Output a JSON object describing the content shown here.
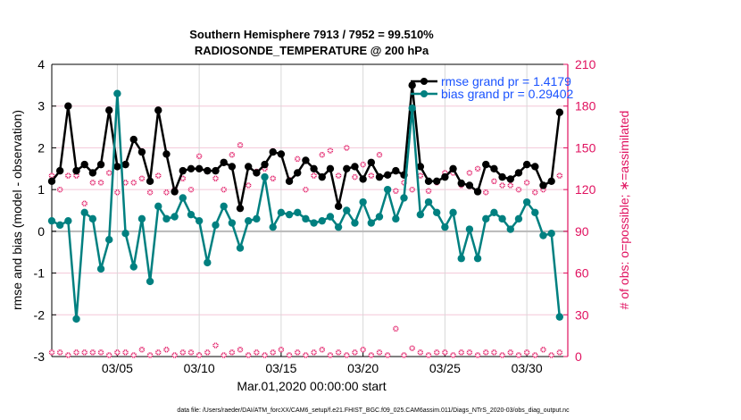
{
  "chart_data": {
    "type": "line",
    "title": "Southern Hemisphere 7913 / 7952 = 99.510%",
    "subtitle": "RADIOSONDE_TEMPERATURE @ 200 hPa",
    "xlabel": "Mar.01,2020 00:00:00 start",
    "ylabel": "rmse and bias (model - observation)",
    "y2label": "# of obs: o=possible; ∗=assimilated",
    "footnote": "data file: /Users/raeder/DAI/ATM_forcXX/CAM6_setup/f.e21.FHIST_BGC.f09_025.CAM6assim.011/Diags_NTrS_2020-03/obs_diag_output.nc",
    "xlim": [
      0,
      31.5
    ],
    "ylim": [
      -3,
      4
    ],
    "y2lim": [
      0,
      210
    ],
    "xticks": [
      {
        "x": 4,
        "label": "03/05"
      },
      {
        "x": 9,
        "label": "03/10"
      },
      {
        "x": 14,
        "label": "03/15"
      },
      {
        "x": 19,
        "label": "03/20"
      },
      {
        "x": 24,
        "label": "03/25"
      },
      {
        "x": 29,
        "label": "03/30"
      }
    ],
    "yticks": [
      "-3",
      "-2",
      "-1",
      "0",
      "1",
      "2",
      "3",
      "4"
    ],
    "y2ticks": [
      "0",
      "30",
      "60",
      "90",
      "120",
      "150",
      "180",
      "210"
    ],
    "grid": true,
    "legend_position": "top-right",
    "series": [
      {
        "name": "rmse grand pr = 1.4179",
        "color": "#000000",
        "x": [
          0.0,
          0.5,
          1.0,
          1.5,
          2.0,
          2.5,
          3.0,
          3.5,
          4.0,
          4.5,
          5.0,
          5.5,
          6.0,
          6.5,
          7.0,
          7.5,
          8.0,
          8.5,
          9.0,
          9.5,
          10.0,
          10.5,
          11.0,
          11.5,
          12.0,
          12.5,
          13.0,
          13.5,
          14.0,
          14.5,
          15.0,
          15.5,
          16.0,
          16.5,
          17.0,
          17.5,
          18.0,
          18.5,
          19.0,
          19.5,
          20.0,
          20.5,
          21.0,
          21.5,
          22.0,
          22.5,
          23.0,
          23.5,
          24.0,
          24.5,
          25.0,
          25.5,
          26.0,
          26.5,
          27.0,
          27.5,
          28.0,
          28.5,
          29.0,
          29.5,
          30.0,
          30.5,
          31.0
        ],
        "values": [
          1.2,
          1.45,
          3.0,
          1.45,
          1.6,
          1.4,
          1.6,
          2.9,
          1.55,
          1.6,
          2.2,
          1.9,
          1.2,
          2.9,
          1.85,
          0.95,
          1.45,
          1.5,
          1.5,
          1.45,
          1.45,
          1.65,
          1.55,
          0.55,
          1.55,
          1.4,
          1.6,
          1.9,
          1.85,
          1.2,
          1.4,
          1.7,
          1.5,
          1.3,
          1.5,
          0.6,
          1.5,
          1.55,
          1.25,
          1.65,
          1.3,
          1.35,
          1.45,
          1.35,
          3.5,
          1.55,
          1.2,
          1.2,
          1.3,
          1.5,
          1.15,
          1.1,
          0.95,
          1.6,
          1.5,
          1.3,
          1.25,
          1.4,
          1.6,
          1.55,
          1.1,
          1.2,
          2.85
        ]
      },
      {
        "name": "bias grand pr = 0.29402",
        "color": "#008080",
        "x": [
          0.0,
          0.5,
          1.0,
          1.5,
          2.0,
          2.5,
          3.0,
          3.5,
          4.0,
          4.5,
          5.0,
          5.5,
          6.0,
          6.5,
          7.0,
          7.5,
          8.0,
          8.5,
          9.0,
          9.5,
          10.0,
          10.5,
          11.0,
          11.5,
          12.0,
          12.5,
          13.0,
          13.5,
          14.0,
          14.5,
          15.0,
          15.5,
          16.0,
          16.5,
          17.0,
          17.5,
          18.0,
          18.5,
          19.0,
          19.5,
          20.0,
          20.5,
          21.0,
          21.5,
          22.0,
          22.5,
          23.0,
          23.5,
          24.0,
          24.5,
          25.0,
          25.5,
          26.0,
          26.5,
          27.0,
          27.5,
          28.0,
          28.5,
          29.0,
          29.5,
          30.0,
          30.5,
          31.0
        ],
        "values": [
          0.25,
          0.15,
          0.25,
          -2.1,
          0.45,
          0.3,
          -0.9,
          -0.2,
          3.3,
          -0.05,
          -0.85,
          0.3,
          -1.2,
          0.6,
          0.3,
          0.35,
          0.8,
          0.4,
          0.25,
          -0.75,
          0.15,
          0.6,
          0.2,
          -0.4,
          0.25,
          0.3,
          1.3,
          0.1,
          0.45,
          0.4,
          0.45,
          0.3,
          0.2,
          0.25,
          0.35,
          0.1,
          0.5,
          0.2,
          0.7,
          0.2,
          0.35,
          1.0,
          0.3,
          0.8,
          2.95,
          0.4,
          0.7,
          0.45,
          0.1,
          0.45,
          -0.65,
          0.05,
          -0.65,
          0.3,
          0.45,
          0.3,
          0.05,
          0.3,
          0.7,
          0.45,
          -0.1,
          -0.05,
          -2.05
        ]
      },
      {
        "name": "obs possible",
        "color": "#e0115f",
        "axis": "y2",
        "x": [
          0.0,
          0.5,
          1.0,
          1.5,
          2.0,
          2.5,
          3.0,
          3.5,
          4.0,
          4.5,
          5.0,
          5.5,
          6.0,
          6.5,
          7.0,
          7.5,
          8.0,
          8.5,
          9.0,
          9.5,
          10.0,
          10.5,
          11.0,
          11.5,
          12.0,
          12.5,
          13.0,
          13.5,
          14.0,
          14.5,
          15.0,
          15.5,
          16.0,
          16.5,
          17.0,
          17.5,
          18.0,
          18.5,
          19.0,
          19.5,
          20.0,
          20.5,
          21.0,
          21.5,
          22.0,
          22.5,
          23.0,
          23.5,
          24.0,
          24.5,
          25.0,
          25.5,
          26.0,
          26.5,
          27.0,
          27.5,
          28.0,
          28.5,
          29.0,
          29.5,
          30.0,
          30.5,
          31.0
        ],
        "values": [
          130,
          120,
          130,
          130,
          110,
          125,
          125,
          132,
          118,
          125,
          125,
          128,
          118,
          130,
          118,
          120,
          128,
          120,
          144,
          133,
          128,
          120,
          145,
          152,
          123,
          133,
          135,
          128,
          145,
          127,
          142,
          120,
          130,
          145,
          148,
          130,
          150,
          129,
          138,
          130,
          145,
          131,
          119,
          125,
          120,
          130,
          119,
          125,
          132,
          132,
          123,
          132,
          135,
          118,
          126,
          123,
          123,
          120,
          125,
          118,
          120,
          126,
          130
        ],
        "counts_bottom": [
          3,
          3,
          1,
          3,
          3,
          3,
          3,
          1,
          3,
          3,
          1,
          5,
          1,
          3,
          5,
          1,
          3,
          3,
          1,
          3,
          8,
          1,
          3,
          5,
          1,
          3,
          1,
          3,
          5,
          1,
          3,
          1,
          3,
          5,
          1,
          3,
          1,
          3,
          5,
          1,
          3,
          1,
          20,
          1,
          6,
          3,
          1,
          3,
          3,
          1,
          3,
          3,
          1,
          3,
          3,
          1,
          3,
          1,
          3,
          1,
          5,
          1,
          3
        ]
      }
    ]
  }
}
